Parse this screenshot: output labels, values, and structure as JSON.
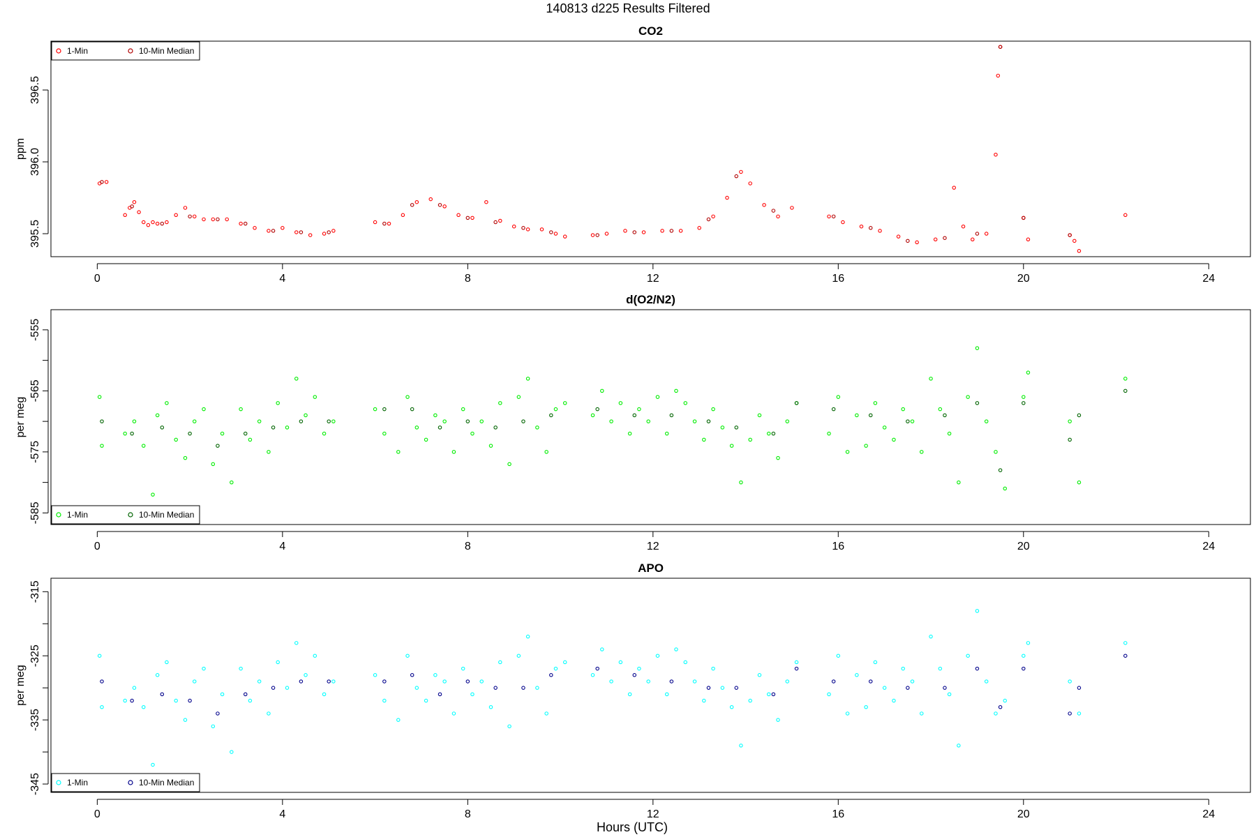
{
  "figure": {
    "title": "140813   d225   Results Filtered",
    "xlabel": "Hours (UTC)"
  },
  "chart_data": [
    {
      "type": "scatter",
      "title": "CO2",
      "ylabel": "ppm",
      "xlim": [
        -1.0,
        24.9
      ],
      "ylim": [
        395.34,
        396.84
      ],
      "xticks": [
        0,
        4,
        8,
        12,
        16,
        20,
        24
      ],
      "yticks": [
        395.5,
        396.0,
        396.5
      ],
      "ytick_labels": [
        "395.5",
        "396.0",
        "396.5"
      ],
      "grid": false,
      "legend_position": "top-left",
      "series": [
        {
          "name": "1-Min",
          "color": "#ff0000",
          "x": [
            0.05,
            0.2,
            0.6,
            0.7,
            0.8,
            0.9,
            1.0,
            1.1,
            1.2,
            1.3,
            1.5,
            1.7,
            1.9,
            2.1,
            2.3,
            2.5,
            2.8,
            3.1,
            3.4,
            3.7,
            4.0,
            4.3,
            4.6,
            4.9,
            5.1,
            6.0,
            6.3,
            6.6,
            6.9,
            7.2,
            7.5,
            7.8,
            8.1,
            8.4,
            8.7,
            9.0,
            9.3,
            9.6,
            9.9,
            10.1,
            10.7,
            11.0,
            11.4,
            11.8,
            12.2,
            12.6,
            13.0,
            13.3,
            13.6,
            13.9,
            14.1,
            14.4,
            14.7,
            15.0,
            15.8,
            16.1,
            16.5,
            16.9,
            17.3,
            17.7,
            18.1,
            18.5,
            18.7,
            18.9,
            19.2,
            19.4,
            19.45,
            19.5,
            20.0,
            20.1,
            21.0,
            21.1,
            21.2,
            22.2
          ],
          "y": [
            395.85,
            395.86,
            395.63,
            395.68,
            395.72,
            395.65,
            395.58,
            395.56,
            395.58,
            395.57,
            395.58,
            395.63,
            395.68,
            395.62,
            395.6,
            395.6,
            395.6,
            395.57,
            395.54,
            395.52,
            395.54,
            395.51,
            395.49,
            395.5,
            395.52,
            395.58,
            395.57,
            395.63,
            395.72,
            395.74,
            395.69,
            395.63,
            395.61,
            395.72,
            395.59,
            395.55,
            395.53,
            395.53,
            395.5,
            395.48,
            395.49,
            395.5,
            395.52,
            395.51,
            395.52,
            395.52,
            395.54,
            395.62,
            395.75,
            395.93,
            395.85,
            395.7,
            395.62,
            395.68,
            395.62,
            395.58,
            395.55,
            395.52,
            395.48,
            395.44,
            395.46,
            395.82,
            395.55,
            395.46,
            395.5,
            396.05,
            396.6,
            396.8,
            395.61,
            395.46,
            395.49,
            395.45,
            395.38,
            395.63
          ]
        },
        {
          "name": "10-Min Median",
          "color": "#b00000",
          "x": [
            0.1,
            0.75,
            1.4,
            2.0,
            2.6,
            3.2,
            3.8,
            4.4,
            5.0,
            6.2,
            6.8,
            7.4,
            8.0,
            8.6,
            9.2,
            9.8,
            10.8,
            11.6,
            12.4,
            13.2,
            13.8,
            14.6,
            15.9,
            16.7,
            17.5,
            18.3,
            19.0,
            19.5,
            20.0,
            21.0
          ],
          "y": [
            395.86,
            395.69,
            395.57,
            395.62,
            395.6,
            395.57,
            395.52,
            395.51,
            395.51,
            395.57,
            395.7,
            395.7,
            395.61,
            395.58,
            395.54,
            395.51,
            395.49,
            395.51,
            395.52,
            395.6,
            395.9,
            395.66,
            395.62,
            395.54,
            395.45,
            395.47,
            395.5,
            396.8,
            395.61,
            395.49
          ]
        }
      ]
    },
    {
      "type": "scatter",
      "title": "d(O2/N2)",
      "ylabel": "per meg",
      "xlim": [
        -1.0,
        24.9
      ],
      "ylim": [
        -586.9,
        -551.7
      ],
      "xticks": [
        0,
        4,
        8,
        12,
        16,
        20,
        24
      ],
      "yticks": [
        -585,
        -580,
        -575,
        -570,
        -565,
        -560,
        -555
      ],
      "ytick_labels": [
        "-585",
        "",
        "-575",
        "",
        "-565",
        "",
        "-555"
      ],
      "grid": false,
      "legend_position": "bottom-left",
      "series": [
        {
          "name": "1-Min",
          "color": "#00ee00",
          "x": [
            0.05,
            0.1,
            0.6,
            0.8,
            1.0,
            1.2,
            1.3,
            1.5,
            1.7,
            1.9,
            2.1,
            2.3,
            2.5,
            2.7,
            2.9,
            3.1,
            3.3,
            3.5,
            3.7,
            3.9,
            4.1,
            4.3,
            4.5,
            4.7,
            4.9,
            5.1,
            6.0,
            6.2,
            6.5,
            6.7,
            6.9,
            7.1,
            7.3,
            7.5,
            7.7,
            7.9,
            8.1,
            8.3,
            8.5,
            8.7,
            8.9,
            9.1,
            9.3,
            9.5,
            9.7,
            9.9,
            10.1,
            10.7,
            10.9,
            11.1,
            11.3,
            11.5,
            11.7,
            11.9,
            12.1,
            12.3,
            12.5,
            12.7,
            12.9,
            13.1,
            13.3,
            13.5,
            13.7,
            13.9,
            14.1,
            14.3,
            14.5,
            14.7,
            14.9,
            15.1,
            15.8,
            16.0,
            16.2,
            16.4,
            16.6,
            16.8,
            17.0,
            17.2,
            17.4,
            17.6,
            17.8,
            18.0,
            18.2,
            18.4,
            18.6,
            18.8,
            19.0,
            19.2,
            19.4,
            19.6,
            20.0,
            20.1,
            21.0,
            21.2,
            22.2
          ],
          "y": [
            -566,
            -574,
            -572,
            -570,
            -574,
            -582,
            -569,
            -567,
            -573,
            -576,
            -570,
            -568,
            -577,
            -572,
            -580,
            -568,
            -573,
            -570,
            -575,
            -567,
            -571,
            -563,
            -569,
            -566,
            -572,
            -570,
            -568,
            -572,
            -575,
            -566,
            -571,
            -573,
            -569,
            -570,
            -575,
            -568,
            -572,
            -570,
            -574,
            -567,
            -577,
            -566,
            -563,
            -571,
            -575,
            -568,
            -567,
            -569,
            -565,
            -570,
            -567,
            -572,
            -568,
            -570,
            -566,
            -572,
            -565,
            -567,
            -570,
            -573,
            -568,
            -571,
            -574,
            -580,
            -573,
            -569,
            -572,
            -576,
            -570,
            -567,
            -572,
            -566,
            -575,
            -569,
            -574,
            -567,
            -571,
            -573,
            -568,
            -570,
            -575,
            -563,
            -568,
            -572,
            -580,
            -566,
            -558,
            -570,
            -575,
            -581,
            -566,
            -562,
            -570,
            -580,
            -563
          ]
        },
        {
          "name": "10-Min Median",
          "color": "#006400",
          "x": [
            0.1,
            0.75,
            1.4,
            2.0,
            2.6,
            3.2,
            3.8,
            4.4,
            5.0,
            6.2,
            6.8,
            7.4,
            8.0,
            8.6,
            9.2,
            9.8,
            10.8,
            11.6,
            12.4,
            13.2,
            13.8,
            14.6,
            15.1,
            15.9,
            16.7,
            17.5,
            18.3,
            19.0,
            19.5,
            20.0,
            21.0,
            21.2,
            22.2
          ],
          "y": [
            -570,
            -572,
            -571,
            -572,
            -574,
            -572,
            -571,
            -570,
            -570,
            -568,
            -568,
            -571,
            -570,
            -571,
            -570,
            -569,
            -568,
            -569,
            -569,
            -570,
            -571,
            -572,
            -567,
            -568,
            -569,
            -570,
            -569,
            -567,
            -578,
            -567,
            -573,
            -569,
            -565
          ]
        }
      ]
    },
    {
      "type": "scatter",
      "title": "APO",
      "ylabel": "per meg",
      "xlim": [
        -1.0,
        24.9
      ],
      "ylim": [
        -346.3,
        -312.9
      ],
      "xticks": [
        0,
        4,
        8,
        12,
        16,
        20,
        24
      ],
      "yticks": [
        -345,
        -340,
        -335,
        -330,
        -325,
        -320,
        -315
      ],
      "ytick_labels": [
        "-345",
        "",
        "-335",
        "",
        "-325",
        "",
        "-315"
      ],
      "grid": false,
      "legend_position": "bottom-left",
      "series": [
        {
          "name": "1-Min",
          "color": "#00ffff",
          "x": [
            0.05,
            0.1,
            0.6,
            0.8,
            1.0,
            1.2,
            1.3,
            1.5,
            1.7,
            1.9,
            2.1,
            2.3,
            2.5,
            2.7,
            2.9,
            3.1,
            3.3,
            3.5,
            3.7,
            3.9,
            4.1,
            4.3,
            4.5,
            4.7,
            4.9,
            5.1,
            6.0,
            6.2,
            6.5,
            6.7,
            6.9,
            7.1,
            7.3,
            7.5,
            7.7,
            7.9,
            8.1,
            8.3,
            8.5,
            8.7,
            8.9,
            9.1,
            9.3,
            9.5,
            9.7,
            9.9,
            10.1,
            10.7,
            10.9,
            11.1,
            11.3,
            11.5,
            11.7,
            11.9,
            12.1,
            12.3,
            12.5,
            12.7,
            12.9,
            13.1,
            13.3,
            13.5,
            13.7,
            13.9,
            14.1,
            14.3,
            14.5,
            14.7,
            14.9,
            15.1,
            15.8,
            16.0,
            16.2,
            16.4,
            16.6,
            16.8,
            17.0,
            17.2,
            17.4,
            17.6,
            17.8,
            18.0,
            18.2,
            18.4,
            18.6,
            18.8,
            19.0,
            19.2,
            19.4,
            19.6,
            20.0,
            20.1,
            21.0,
            21.2,
            22.2
          ],
          "y": [
            -325,
            -333,
            -332,
            -330,
            -333,
            -342,
            -328,
            -326,
            -332,
            -335,
            -329,
            -327,
            -336,
            -331,
            -340,
            -327,
            -332,
            -329,
            -334,
            -326,
            -330,
            -323,
            -328,
            -325,
            -331,
            -329,
            -328,
            -332,
            -335,
            -325,
            -330,
            -332,
            -328,
            -329,
            -334,
            -327,
            -331,
            -329,
            -333,
            -326,
            -336,
            -325,
            -322,
            -330,
            -334,
            -327,
            -326,
            -328,
            -324,
            -329,
            -326,
            -331,
            -327,
            -329,
            -325,
            -331,
            -324,
            -326,
            -329,
            -332,
            -327,
            -330,
            -333,
            -339,
            -332,
            -328,
            -331,
            -335,
            -329,
            -326,
            -331,
            -325,
            -334,
            -328,
            -333,
            -326,
            -330,
            -332,
            -327,
            -329,
            -334,
            -322,
            -327,
            -331,
            -339,
            -325,
            -318,
            -329,
            -334,
            -332,
            -325,
            -323,
            -329,
            -334,
            -323
          ]
        },
        {
          "name": "10-Min Median",
          "color": "#00008b",
          "x": [
            0.1,
            0.75,
            1.4,
            2.0,
            2.6,
            3.2,
            3.8,
            4.4,
            5.0,
            6.2,
            6.8,
            7.4,
            8.0,
            8.6,
            9.2,
            9.8,
            10.8,
            11.6,
            12.4,
            13.2,
            13.8,
            14.6,
            15.1,
            15.9,
            16.7,
            17.5,
            18.3,
            19.0,
            19.5,
            20.0,
            21.0,
            21.2,
            22.2
          ],
          "y": [
            -329,
            -332,
            -331,
            -332,
            -334,
            -331,
            -330,
            -329,
            -329,
            -329,
            -328,
            -331,
            -329,
            -330,
            -330,
            -328,
            -327,
            -328,
            -329,
            -330,
            -330,
            -331,
            -327,
            -329,
            -329,
            -330,
            -330,
            -327,
            -333,
            -327,
            -334,
            -330,
            -325
          ]
        }
      ]
    }
  ]
}
